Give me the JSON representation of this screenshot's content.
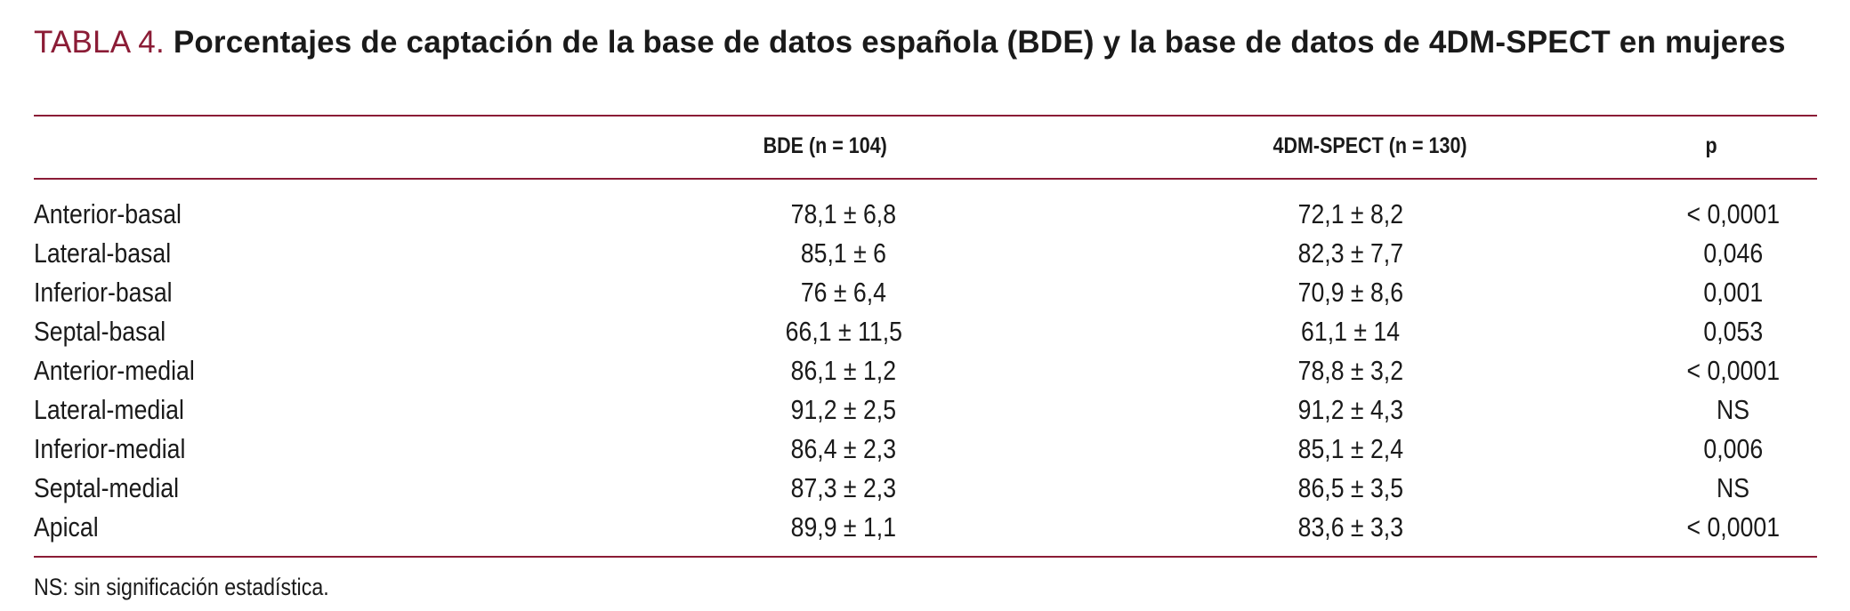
{
  "title": {
    "label": "TABLA 4.",
    "text": "Porcentajes de captación de la base de datos española (BDE) y la base de datos de 4DM-SPECT en mujeres"
  },
  "table": {
    "headers": [
      "",
      "BDE (n = 104)",
      "4DM-SPECT (n = 130)",
      "p"
    ],
    "rows": [
      [
        "Anterior-basal",
        "78,1 ± 6,8",
        "72,1 ± 8,2",
        "< 0,0001"
      ],
      [
        "Lateral-basal",
        "85,1 ± 6",
        "82,3 ± 7,7",
        "0,046"
      ],
      [
        "Inferior-basal",
        "76 ± 6,4",
        "70,9 ± 8,6",
        "0,001"
      ],
      [
        "Septal-basal",
        "66,1 ± 11,5",
        "61,1 ± 14",
        "0,053"
      ],
      [
        "Anterior-medial",
        "86,1 ± 1,2",
        "78,8 ± 3,2",
        "< 0,0001"
      ],
      [
        "Lateral-medial",
        "91,2 ± 2,5",
        "91,2 ± 4,3",
        "NS"
      ],
      [
        "Inferior-medial",
        "86,4 ± 2,3",
        "85,1 ± 2,4",
        "0,006"
      ],
      [
        "Septal-medial",
        "87,3 ± 2,3",
        "86,5 ± 3,5",
        "NS"
      ],
      [
        "Apical",
        "89,9 ± 1,1",
        "83,6 ± 3,3",
        "< 0,0001"
      ]
    ]
  },
  "footnote": "NS: sin significación estadística.",
  "colors": {
    "accent": "#8b1c36",
    "text": "#1a1a1a"
  }
}
